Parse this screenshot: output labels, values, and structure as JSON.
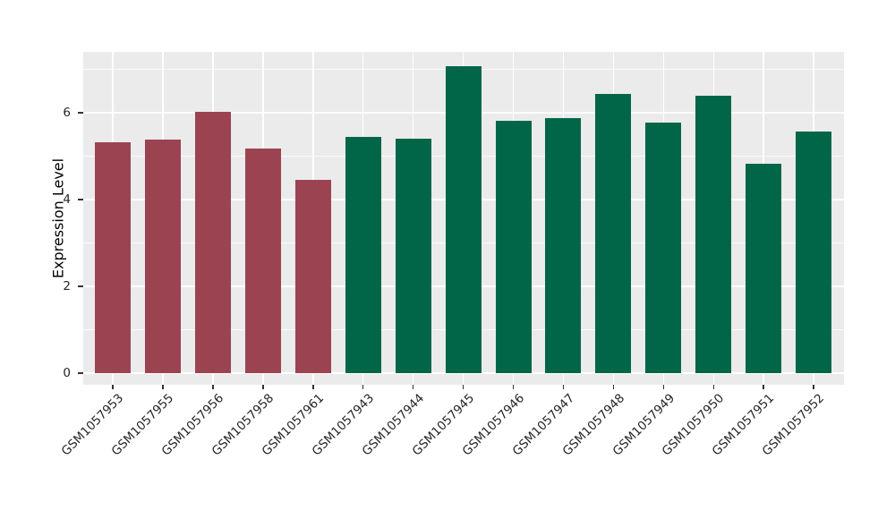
{
  "chart_data": {
    "type": "bar",
    "title": "",
    "xlabel": "",
    "ylabel": "Expression Level",
    "categories": [
      "GSM1057953",
      "GSM1057955",
      "GSM1057956",
      "GSM1057958",
      "GSM1057961",
      "GSM1057943",
      "GSM1057944",
      "GSM1057945",
      "GSM1057946",
      "GSM1057947",
      "GSM1057948",
      "GSM1057949",
      "GSM1057950",
      "GSM1057951",
      "GSM1057952"
    ],
    "values": [
      5.31,
      5.37,
      6.01,
      5.18,
      4.45,
      5.45,
      5.4,
      7.08,
      5.82,
      5.88,
      6.44,
      5.78,
      6.38,
      4.83,
      5.57
    ],
    "groups": [
      "group1",
      "group1",
      "group1",
      "group1",
      "group1",
      "group2",
      "group2",
      "group2",
      "group2",
      "group2",
      "group2",
      "group2",
      "group2",
      "group2",
      "group2"
    ],
    "group_colors": {
      "group1": "#9C4351",
      "group2": "#016648"
    },
    "yticks": [
      0,
      2,
      4,
      6
    ],
    "minor_yticks": [
      1,
      3,
      5,
      7
    ],
    "ylim": [
      0,
      7.4
    ],
    "grid": true,
    "legend": false,
    "panel_bg": "#EBEBEB",
    "grid_color": "#FFFFFF",
    "tick_color": "#333333",
    "label_color": "#262626"
  }
}
